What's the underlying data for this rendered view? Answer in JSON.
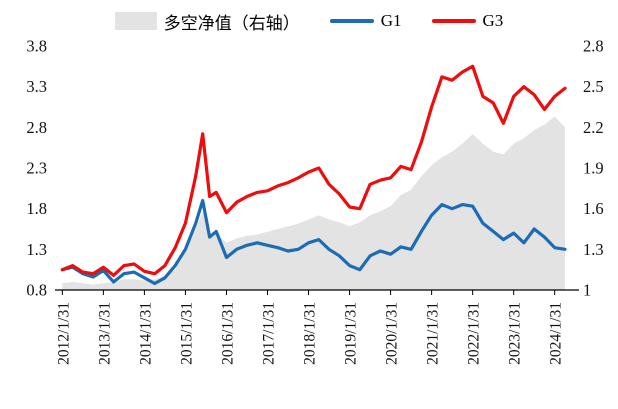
{
  "legend": {
    "area_label": "多空净值（右轴）",
    "g1_label": "G1",
    "g3_label": "G3"
  },
  "colors": {
    "area": "#e3e3e3",
    "g1": "#1b6cb5",
    "g3": "#ee0c0c",
    "axis": "#000000"
  },
  "chart_data": {
    "type": "line",
    "title": "",
    "legend_position": "top",
    "grid": false,
    "x_tick_labels": [
      "2012/1/31",
      "2013/1/31",
      "2014/1/31",
      "2015/1/31",
      "2016/1/31",
      "2017/1/31",
      "2018/1/31",
      "2019/1/31",
      "2020/1/31",
      "2021/1/31",
      "2022/1/31",
      "2023/1/31",
      "2024/1/31"
    ],
    "x_tick_positions": [
      2012.08,
      2013.08,
      2014.08,
      2015.08,
      2016.08,
      2017.08,
      2018.08,
      2019.08,
      2020.08,
      2021.08,
      2022.08,
      2023.08,
      2024.08
    ],
    "x_range": [
      2011.95,
      2024.55
    ],
    "left_axis": {
      "range": [
        0.8,
        3.8
      ],
      "ticks": [
        0.8,
        1.3,
        1.8,
        2.3,
        2.8,
        3.3,
        3.8
      ],
      "tick_labels": [
        "0.8",
        "1.3",
        "1.8",
        "2.3",
        "2.8",
        "3.3",
        "3.8"
      ]
    },
    "right_axis": {
      "range": [
        1,
        2.8
      ],
      "ticks": [
        1,
        1.3,
        1.6,
        1.9,
        2.2,
        2.5,
        2.8
      ],
      "tick_labels": [
        "1",
        "1.3",
        "1.6",
        "1.9",
        "2.2",
        "2.5",
        "2.8"
      ]
    },
    "x": [
      2012.08,
      2012.33,
      2012.58,
      2012.83,
      2013.08,
      2013.33,
      2013.58,
      2013.83,
      2014.08,
      2014.33,
      2014.58,
      2014.83,
      2015.08,
      2015.33,
      2015.5,
      2015.67,
      2015.83,
      2016.08,
      2016.33,
      2016.58,
      2016.83,
      2017.08,
      2017.33,
      2017.58,
      2017.83,
      2018.08,
      2018.33,
      2018.58,
      2018.83,
      2019.08,
      2019.33,
      2019.58,
      2019.83,
      2020.08,
      2020.33,
      2020.58,
      2020.83,
      2021.08,
      2021.33,
      2021.58,
      2021.83,
      2022.08,
      2022.33,
      2022.58,
      2022.83,
      2023.08,
      2023.33,
      2023.58,
      2023.83,
      2024.08,
      2024.33
    ],
    "series": [
      {
        "id": "area",
        "name": "多空净值（右轴）",
        "type": "area",
        "axis": "right",
        "color": "#e3e3e3",
        "values": [
          1.05,
          1.06,
          1.05,
          1.04,
          1.05,
          1.06,
          1.08,
          1.08,
          1.07,
          1.08,
          1.1,
          1.15,
          1.28,
          1.45,
          1.58,
          1.4,
          1.42,
          1.35,
          1.38,
          1.4,
          1.41,
          1.43,
          1.45,
          1.47,
          1.49,
          1.52,
          1.55,
          1.52,
          1.5,
          1.47,
          1.5,
          1.55,
          1.58,
          1.62,
          1.7,
          1.74,
          1.84,
          1.92,
          1.98,
          2.02,
          2.08,
          2.15,
          2.08,
          2.02,
          2.0,
          2.08,
          2.12,
          2.18,
          2.22,
          2.28,
          2.2
        ]
      },
      {
        "id": "g1",
        "name": "G1",
        "type": "line",
        "axis": "left",
        "color": "#1b6cb5",
        "values": [
          1.05,
          1.08,
          1.0,
          0.96,
          1.04,
          0.9,
          1.0,
          1.02,
          0.95,
          0.88,
          0.95,
          1.1,
          1.3,
          1.62,
          1.9,
          1.45,
          1.52,
          1.2,
          1.3,
          1.35,
          1.38,
          1.35,
          1.32,
          1.28,
          1.3,
          1.38,
          1.42,
          1.3,
          1.22,
          1.1,
          1.05,
          1.22,
          1.28,
          1.24,
          1.33,
          1.3,
          1.52,
          1.72,
          1.85,
          1.8,
          1.85,
          1.83,
          1.62,
          1.52,
          1.42,
          1.5,
          1.38,
          1.55,
          1.45,
          1.32,
          1.3
        ]
      },
      {
        "id": "g3",
        "name": "G3",
        "type": "line",
        "axis": "left",
        "color": "#ee0c0c",
        "values": [
          1.05,
          1.1,
          1.02,
          1.0,
          1.08,
          0.98,
          1.1,
          1.12,
          1.03,
          1.0,
          1.1,
          1.32,
          1.62,
          2.2,
          2.72,
          1.95,
          2.0,
          1.75,
          1.88,
          1.95,
          2.0,
          2.02,
          2.08,
          2.12,
          2.18,
          2.25,
          2.3,
          2.1,
          1.98,
          1.82,
          1.8,
          2.1,
          2.15,
          2.18,
          2.32,
          2.28,
          2.62,
          3.05,
          3.42,
          3.38,
          3.48,
          3.55,
          3.18,
          3.1,
          2.85,
          3.18,
          3.3,
          3.2,
          3.02,
          3.18,
          3.28
        ]
      }
    ]
  }
}
